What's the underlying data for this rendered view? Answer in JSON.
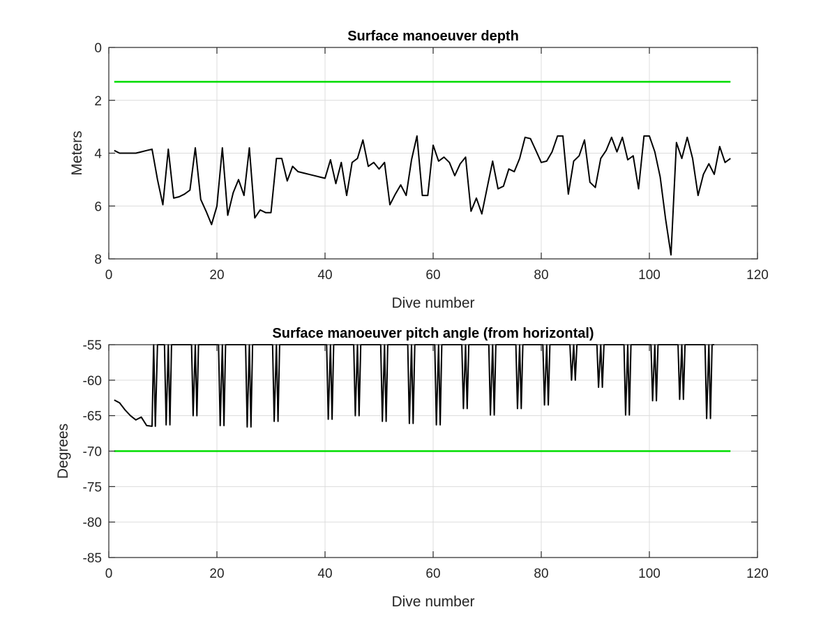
{
  "chart_data": [
    {
      "type": "line",
      "title": "Surface manoeuver depth",
      "xlabel": "Dive number",
      "ylabel": "Meters",
      "xlim": [
        0,
        120
      ],
      "ylim": [
        0,
        8
      ],
      "y_reversed": true,
      "grid": true,
      "xticks": [
        "0",
        "20",
        "40",
        "60",
        "80",
        "100",
        "120"
      ],
      "yticks": [
        "0",
        "2",
        "4",
        "6",
        "8"
      ],
      "series": [
        {
          "color": "#000000",
          "x": [
            1,
            2,
            3,
            4,
            5,
            6,
            7,
            8,
            9,
            10,
            11,
            12,
            13,
            14,
            15,
            16,
            17,
            18,
            19,
            20,
            21,
            22,
            23,
            24,
            25,
            26,
            27,
            28,
            29,
            30,
            31,
            32,
            33,
            34,
            35,
            36,
            37,
            38,
            39,
            40,
            41,
            42,
            43,
            44,
            45,
            46,
            47,
            48,
            49,
            50,
            51,
            52,
            53,
            54,
            55,
            56,
            57,
            58,
            59,
            60,
            61,
            62,
            63,
            64,
            65,
            66,
            67,
            68,
            69,
            70,
            71,
            72,
            73,
            74,
            75,
            76,
            77,
            78,
            79,
            80,
            81,
            82,
            83,
            84,
            85,
            86,
            87,
            88,
            89,
            90,
            91,
            92,
            93,
            94,
            95,
            96,
            97,
            98,
            99,
            100,
            101,
            102,
            103,
            104,
            105,
            106,
            107,
            108,
            109,
            110,
            111,
            112,
            113,
            114,
            115
          ],
          "y": [
            3.9,
            4.0,
            4.0,
            4.0,
            4.0,
            3.95,
            3.9,
            3.85,
            5.0,
            5.95,
            3.85,
            5.7,
            5.65,
            5.55,
            5.4,
            3.8,
            5.75,
            6.2,
            6.7,
            6.0,
            3.8,
            6.35,
            5.5,
            5.0,
            5.6,
            3.8,
            6.45,
            6.15,
            6.25,
            6.25,
            4.2,
            4.2,
            5.05,
            4.5,
            4.7,
            4.75,
            4.8,
            4.85,
            4.9,
            4.95,
            4.25,
            5.15,
            4.35,
            5.6,
            4.35,
            4.2,
            3.5,
            4.5,
            4.35,
            4.6,
            4.35,
            5.95,
            5.55,
            5.2,
            5.6,
            4.25,
            3.35,
            5.6,
            5.6,
            3.7,
            4.3,
            4.15,
            4.35,
            4.85,
            4.4,
            4.15,
            6.2,
            5.7,
            6.3,
            5.3,
            4.3,
            5.35,
            5.25,
            4.6,
            4.7,
            4.2,
            3.4,
            3.45,
            3.9,
            4.35,
            4.3,
            3.95,
            3.35,
            3.35,
            5.55,
            4.3,
            4.1,
            3.5,
            5.1,
            5.3,
            4.2,
            3.9,
            3.4,
            3.95,
            3.4,
            4.25,
            4.1,
            5.35,
            3.35,
            3.35,
            3.95,
            4.9,
            6.5,
            7.85,
            3.6,
            4.2,
            3.4,
            4.2,
            5.6,
            4.8,
            4.4,
            4.8,
            3.75,
            4.35,
            4.2
          ]
        },
        {
          "color": "#00dd00",
          "x": [
            1,
            115
          ],
          "y": [
            1.3,
            1.3
          ]
        }
      ]
    },
    {
      "type": "line",
      "title": "Surface manoeuver pitch angle (from horizontal)",
      "xlabel": "Dive number",
      "ylabel": "Degrees",
      "xlim": [
        0,
        120
      ],
      "ylim": [
        -85,
        -55
      ],
      "grid": true,
      "xticks": [
        "0",
        "20",
        "40",
        "60",
        "80",
        "100",
        "120"
      ],
      "yticks": [
        "-55",
        "-60",
        "-65",
        "-70",
        "-75",
        "-80",
        "-85"
      ],
      "series": [
        {
          "color": "#000000",
          "x": [
            1,
            2,
            3,
            4,
            5,
            6,
            7,
            8,
            8.3,
            8.6,
            9,
            10,
            10.3,
            10.6,
            11,
            11.3,
            11.6,
            12,
            15,
            15.3,
            15.6,
            16,
            16.3,
            16.6,
            17,
            20,
            20.3,
            20.6,
            21,
            21.3,
            21.6,
            22,
            25,
            25.3,
            25.6,
            26,
            26.3,
            26.6,
            27,
            30,
            30.3,
            30.6,
            31,
            31.3,
            31.6,
            32,
            40,
            40.3,
            40.6,
            41,
            41.3,
            41.6,
            42,
            45,
            45.3,
            45.6,
            46,
            46.3,
            46.6,
            47,
            50,
            50.3,
            50.6,
            51,
            51.3,
            51.6,
            52,
            55,
            55.3,
            55.6,
            56,
            56.3,
            56.6,
            57,
            60,
            60.3,
            60.6,
            61,
            61.3,
            61.6,
            62,
            65,
            65.3,
            65.6,
            66,
            66.3,
            66.6,
            67,
            70,
            70.3,
            70.6,
            71,
            71.3,
            71.6,
            72,
            75,
            75.3,
            75.6,
            76,
            76.3,
            76.6,
            77,
            80,
            80.3,
            80.6,
            81,
            81.3,
            81.6,
            82,
            85,
            85.3,
            85.6,
            86,
            86.3,
            86.6,
            87,
            90,
            90.3,
            90.6,
            91,
            91.3,
            91.6,
            92,
            95,
            95.3,
            95.6,
            96,
            96.3,
            96.6,
            97,
            100,
            100.3,
            100.6,
            101,
            101.3,
            101.6,
            102,
            105,
            105.3,
            105.6,
            106,
            106.3,
            106.6,
            107,
            110,
            110.3,
            110.6,
            111,
            111.3,
            111.6,
            112
          ],
          "y": [
            -62.8,
            -63.2,
            -64.2,
            -65.0,
            -65.6,
            -65.2,
            -66.4,
            -66.5,
            -55,
            -66.5,
            -55,
            -55,
            -55,
            -66.3,
            -55,
            -66.3,
            -55,
            -55,
            -55,
            -55,
            -65.0,
            -55,
            -65.0,
            -55,
            -55,
            -55,
            -55,
            -66.4,
            -55,
            -66.4,
            -55,
            -55,
            -55,
            -55,
            -66.6,
            -55,
            -66.6,
            -55,
            -55,
            -55,
            -55,
            -65.8,
            -55,
            -65.8,
            -55,
            -55,
            -55,
            -55,
            -65.5,
            -55,
            -65.5,
            -55,
            -55,
            -55,
            -55,
            -65.0,
            -55,
            -65.0,
            -55,
            -55,
            -55,
            -55,
            -65.8,
            -55,
            -65.8,
            -55,
            -55,
            -55,
            -55,
            -66.1,
            -55,
            -66.1,
            -55,
            -55,
            -55,
            -55,
            -66.3,
            -55,
            -66.3,
            -55,
            -55,
            -55,
            -55,
            -64.0,
            -55,
            -64.0,
            -55,
            -55,
            -55,
            -55,
            -64.9,
            -55,
            -64.9,
            -55,
            -55,
            -55,
            -55,
            -64.0,
            -55,
            -64.0,
            -55,
            -55,
            -55,
            -55,
            -63.5,
            -55,
            -63.5,
            -55,
            -55,
            -55,
            -55,
            -60.0,
            -55,
            -60.0,
            -55,
            -55,
            -55,
            -55,
            -61.0,
            -55,
            -61.0,
            -55,
            -55,
            -55,
            -55,
            -64.9,
            -55,
            -64.9,
            -55,
            -55,
            -55,
            -55,
            -62.9,
            -55,
            -62.9,
            -55,
            -55,
            -55,
            -55,
            -62.7,
            -55,
            -62.7,
            -55,
            -55,
            -55,
            -55,
            -65.4,
            -55,
            -65.4,
            -55,
            -55
          ]
        },
        {
          "color": "#00dd00",
          "x": [
            1,
            115
          ],
          "y": [
            -70,
            -70
          ]
        }
      ]
    }
  ]
}
